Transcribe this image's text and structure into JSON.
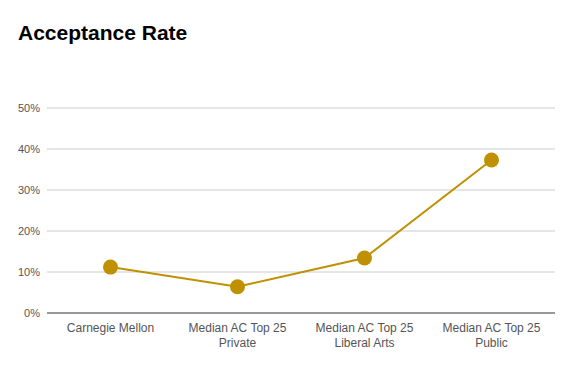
{
  "chart_data": {
    "type": "line",
    "title": "Acceptance Rate",
    "categories": [
      "Carnegie Mellon",
      "Median AC Top 25 Private",
      "Median AC Top 25 Liberal Arts",
      "Median AC Top 25 Public"
    ],
    "values": [
      11.2,
      6.4,
      13.4,
      37.3
    ],
    "color": "#bf9000",
    "marker": "circle",
    "ylim": [
      0,
      50
    ],
    "yticks": [
      {
        "value": 0,
        "label": "0%"
      },
      {
        "value": 10,
        "label": "10%"
      },
      {
        "value": 20,
        "label": "20%"
      },
      {
        "value": 30,
        "label": "30%"
      },
      {
        "value": 40,
        "label": "40%"
      },
      {
        "value": 50,
        "label": "50%"
      }
    ],
    "grid": true
  }
}
